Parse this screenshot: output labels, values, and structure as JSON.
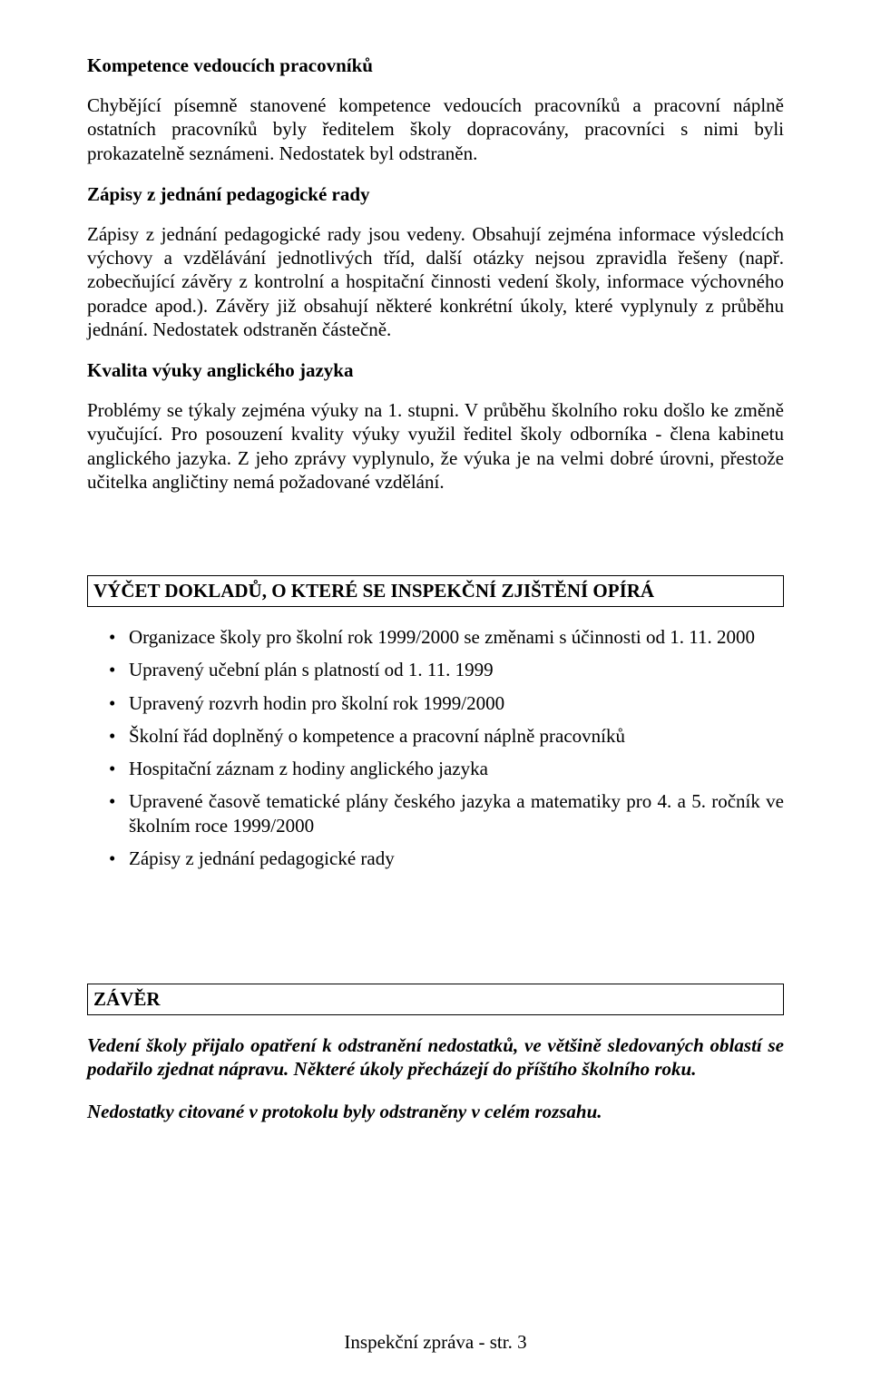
{
  "colors": {
    "text": "#000000",
    "background": "#ffffff",
    "box_border": "#000000"
  },
  "typography": {
    "family": "Times New Roman",
    "body_size_pt": 12,
    "line_height": 1.25
  },
  "sections": {
    "kompetence": {
      "title": "Kompetence vedoucích pracovníků",
      "body": "Chybějící písemně stanovené kompetence vedoucích pracovníků a pracovní náplně ostatních pracovníků byly ředitelem školy dopracovány, pracovníci s nimi byli prokazatelně seznámeni. Nedostatek byl odstraněn."
    },
    "zapisy": {
      "title": "Zápisy z jednání pedagogické rady",
      "body": "Zápisy z jednání pedagogické rady jsou vedeny. Obsahují zejména informace výsledcích výchovy a vzdělávání jednotlivých tříd, další otázky nejsou zpravidla řešeny (např. zobecňující závěry z kontrolní a hospitační činnosti vedení školy, informace výchovného poradce apod.). Závěry již obsahují některé konkrétní úkoly, které vyplynuly z průběhu jednání. Nedostatek odstraněn částečně."
    },
    "kvalita": {
      "title": "Kvalita výuky anglického jazyka",
      "body": "Problémy se týkaly zejména výuky na 1. stupni. V průběhu školního roku došlo ke změně vyučující. Pro posouzení kvality výuky využil ředitel školy odborníka - člena kabinetu anglického jazyka. Z jeho zprávy vyplynulo, že výuka je na velmi dobré úrovni, přestože učitelka angličtiny nemá požadované vzdělání."
    }
  },
  "vycet": {
    "title": "VÝČET DOKLADŮ, O KTERÉ SE INSPEKČNÍ ZJIŠTĚNÍ OPÍRÁ",
    "items": [
      "Organizace školy pro školní rok 1999/2000 se změnami s účinnosti od 1. 11. 2000",
      "Upravený učební plán s platností od 1. 11. 1999",
      "Upravený rozvrh hodin pro školní rok 1999/2000",
      "Školní řád doplněný o kompetence a pracovní náplně pracovníků",
      "Hospitační záznam z hodiny anglického jazyka",
      "Upravené časově tematické plány českého jazyka a matematiky pro 4. a 5. ročník ve školním roce 1999/2000",
      "Zápisy z jednání pedagogické rady"
    ]
  },
  "zaver": {
    "title": "ZÁVĚR",
    "line1": "Vedení školy přijalo opatření k odstranění nedostatků, ve většině sledovaných oblastí se podařilo zjednat nápravu. Některé úkoly přecházejí do příštího školního roku.",
    "line2": "Nedostatky citované v protokolu byly odstraněny v celém rozsahu."
  },
  "footer": "Inspekční zpráva - str. 3"
}
